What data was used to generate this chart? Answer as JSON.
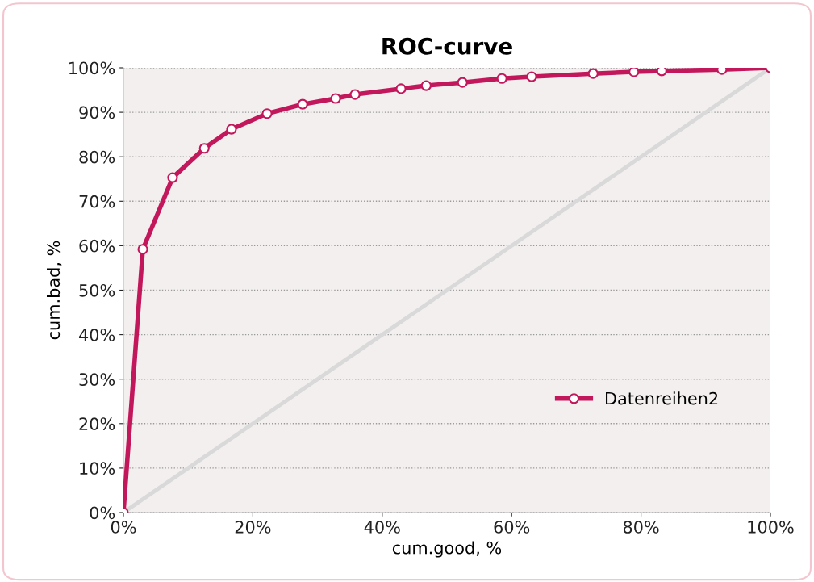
{
  "chart_data": {
    "type": "line",
    "title": "ROC-curve",
    "xlabel": "cum.good, %",
    "ylabel": "cum.bad, %",
    "series": [
      {
        "name": "Datenreihen2",
        "color": "#c2185b",
        "marker": "circle",
        "x": [
          0,
          3.0,
          7.6,
          12.5,
          16.7,
          22.2,
          27.7,
          32.8,
          35.8,
          42.9,
          46.8,
          52.4,
          58.5,
          63.1,
          72.6,
          78.9,
          83.2,
          92.5,
          100
        ],
        "values": [
          0,
          59.2,
          75.3,
          81.9,
          86.2,
          89.7,
          91.8,
          93.1,
          94.0,
          95.3,
          96.0,
          96.7,
          97.6,
          98.0,
          98.7,
          99.1,
          99.3,
          99.6,
          100
        ]
      },
      {
        "color": "#d9d9d9",
        "marker": "none",
        "x": [
          0,
          100
        ],
        "values": [
          0,
          100
        ]
      }
    ],
    "xlim": [
      0,
      100
    ],
    "ylim": [
      0,
      100
    ],
    "xticks": [
      {
        "value": 0,
        "label": "0%"
      },
      {
        "value": 20,
        "label": "20%"
      },
      {
        "value": 40,
        "label": "40%"
      },
      {
        "value": 60,
        "label": "60%"
      },
      {
        "value": 80,
        "label": "80%"
      },
      {
        "value": 100,
        "label": "100%"
      }
    ],
    "yticks": [
      {
        "value": 0,
        "label": "0%"
      },
      {
        "value": 10,
        "label": "10%"
      },
      {
        "value": 20,
        "label": "20%"
      },
      {
        "value": 30,
        "label": "30%"
      },
      {
        "value": 40,
        "label": "40%"
      },
      {
        "value": 50,
        "label": "50%"
      },
      {
        "value": 60,
        "label": "60%"
      },
      {
        "value": 70,
        "label": "70%"
      },
      {
        "value": 80,
        "label": "80%"
      },
      {
        "value": 90,
        "label": "90%"
      },
      {
        "value": 100,
        "label": "100%"
      }
    ],
    "grid": "y",
    "legend": "right",
    "line_style": "solid"
  }
}
